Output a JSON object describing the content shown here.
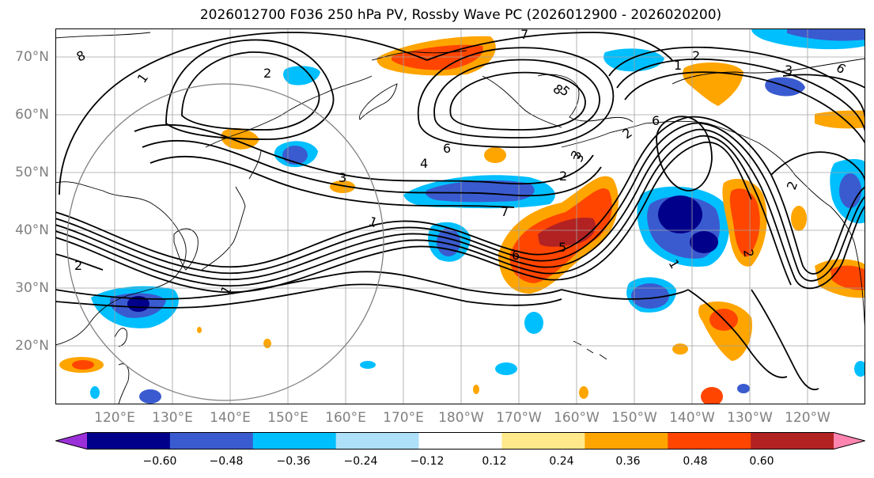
{
  "title": "2026012700 F036 250 hPa PV, Rossby Wave PC (2026012900 - 2026020200)",
  "lat_labels": [
    "70°N",
    "60°N",
    "50°N",
    "40°N",
    "30°N",
    "20°N"
  ],
  "lon_labels": [
    "120°E",
    "130°E",
    "140°E",
    "150°E",
    "160°E",
    "170°E",
    "180°W",
    "170°W",
    "160°W",
    "150°W",
    "140°W",
    "130°W",
    "120°W"
  ],
  "colorbar": {
    "ticks": [
      "−0.60",
      "−0.48",
      "−0.36",
      "−0.24",
      "−0.12",
      "0.12",
      "0.24",
      "0.36",
      "0.48",
      "0.60"
    ],
    "colors": [
      "#9b30d9",
      "#00008b",
      "#3a5bcf",
      "#00bfff",
      "#aee0fa",
      "#ffffff",
      "#ffe98a",
      "#ffa500",
      "#ff4500",
      "#b22222",
      "#ff85b0"
    ]
  },
  "contour_labels": [
    "8",
    "1",
    "2",
    "7",
    "3",
    "4",
    "6",
    "5",
    "2",
    "3",
    "7",
    "6",
    "5",
    "1",
    "2",
    "1",
    "6",
    "2",
    "3",
    "2",
    "1",
    "2",
    "2",
    "1",
    "8",
    "3",
    "6"
  ],
  "colors": {
    "grid": "#a0a0a0",
    "contour": "#000000",
    "circle": "#808080",
    "axis_text": "#808080"
  }
}
